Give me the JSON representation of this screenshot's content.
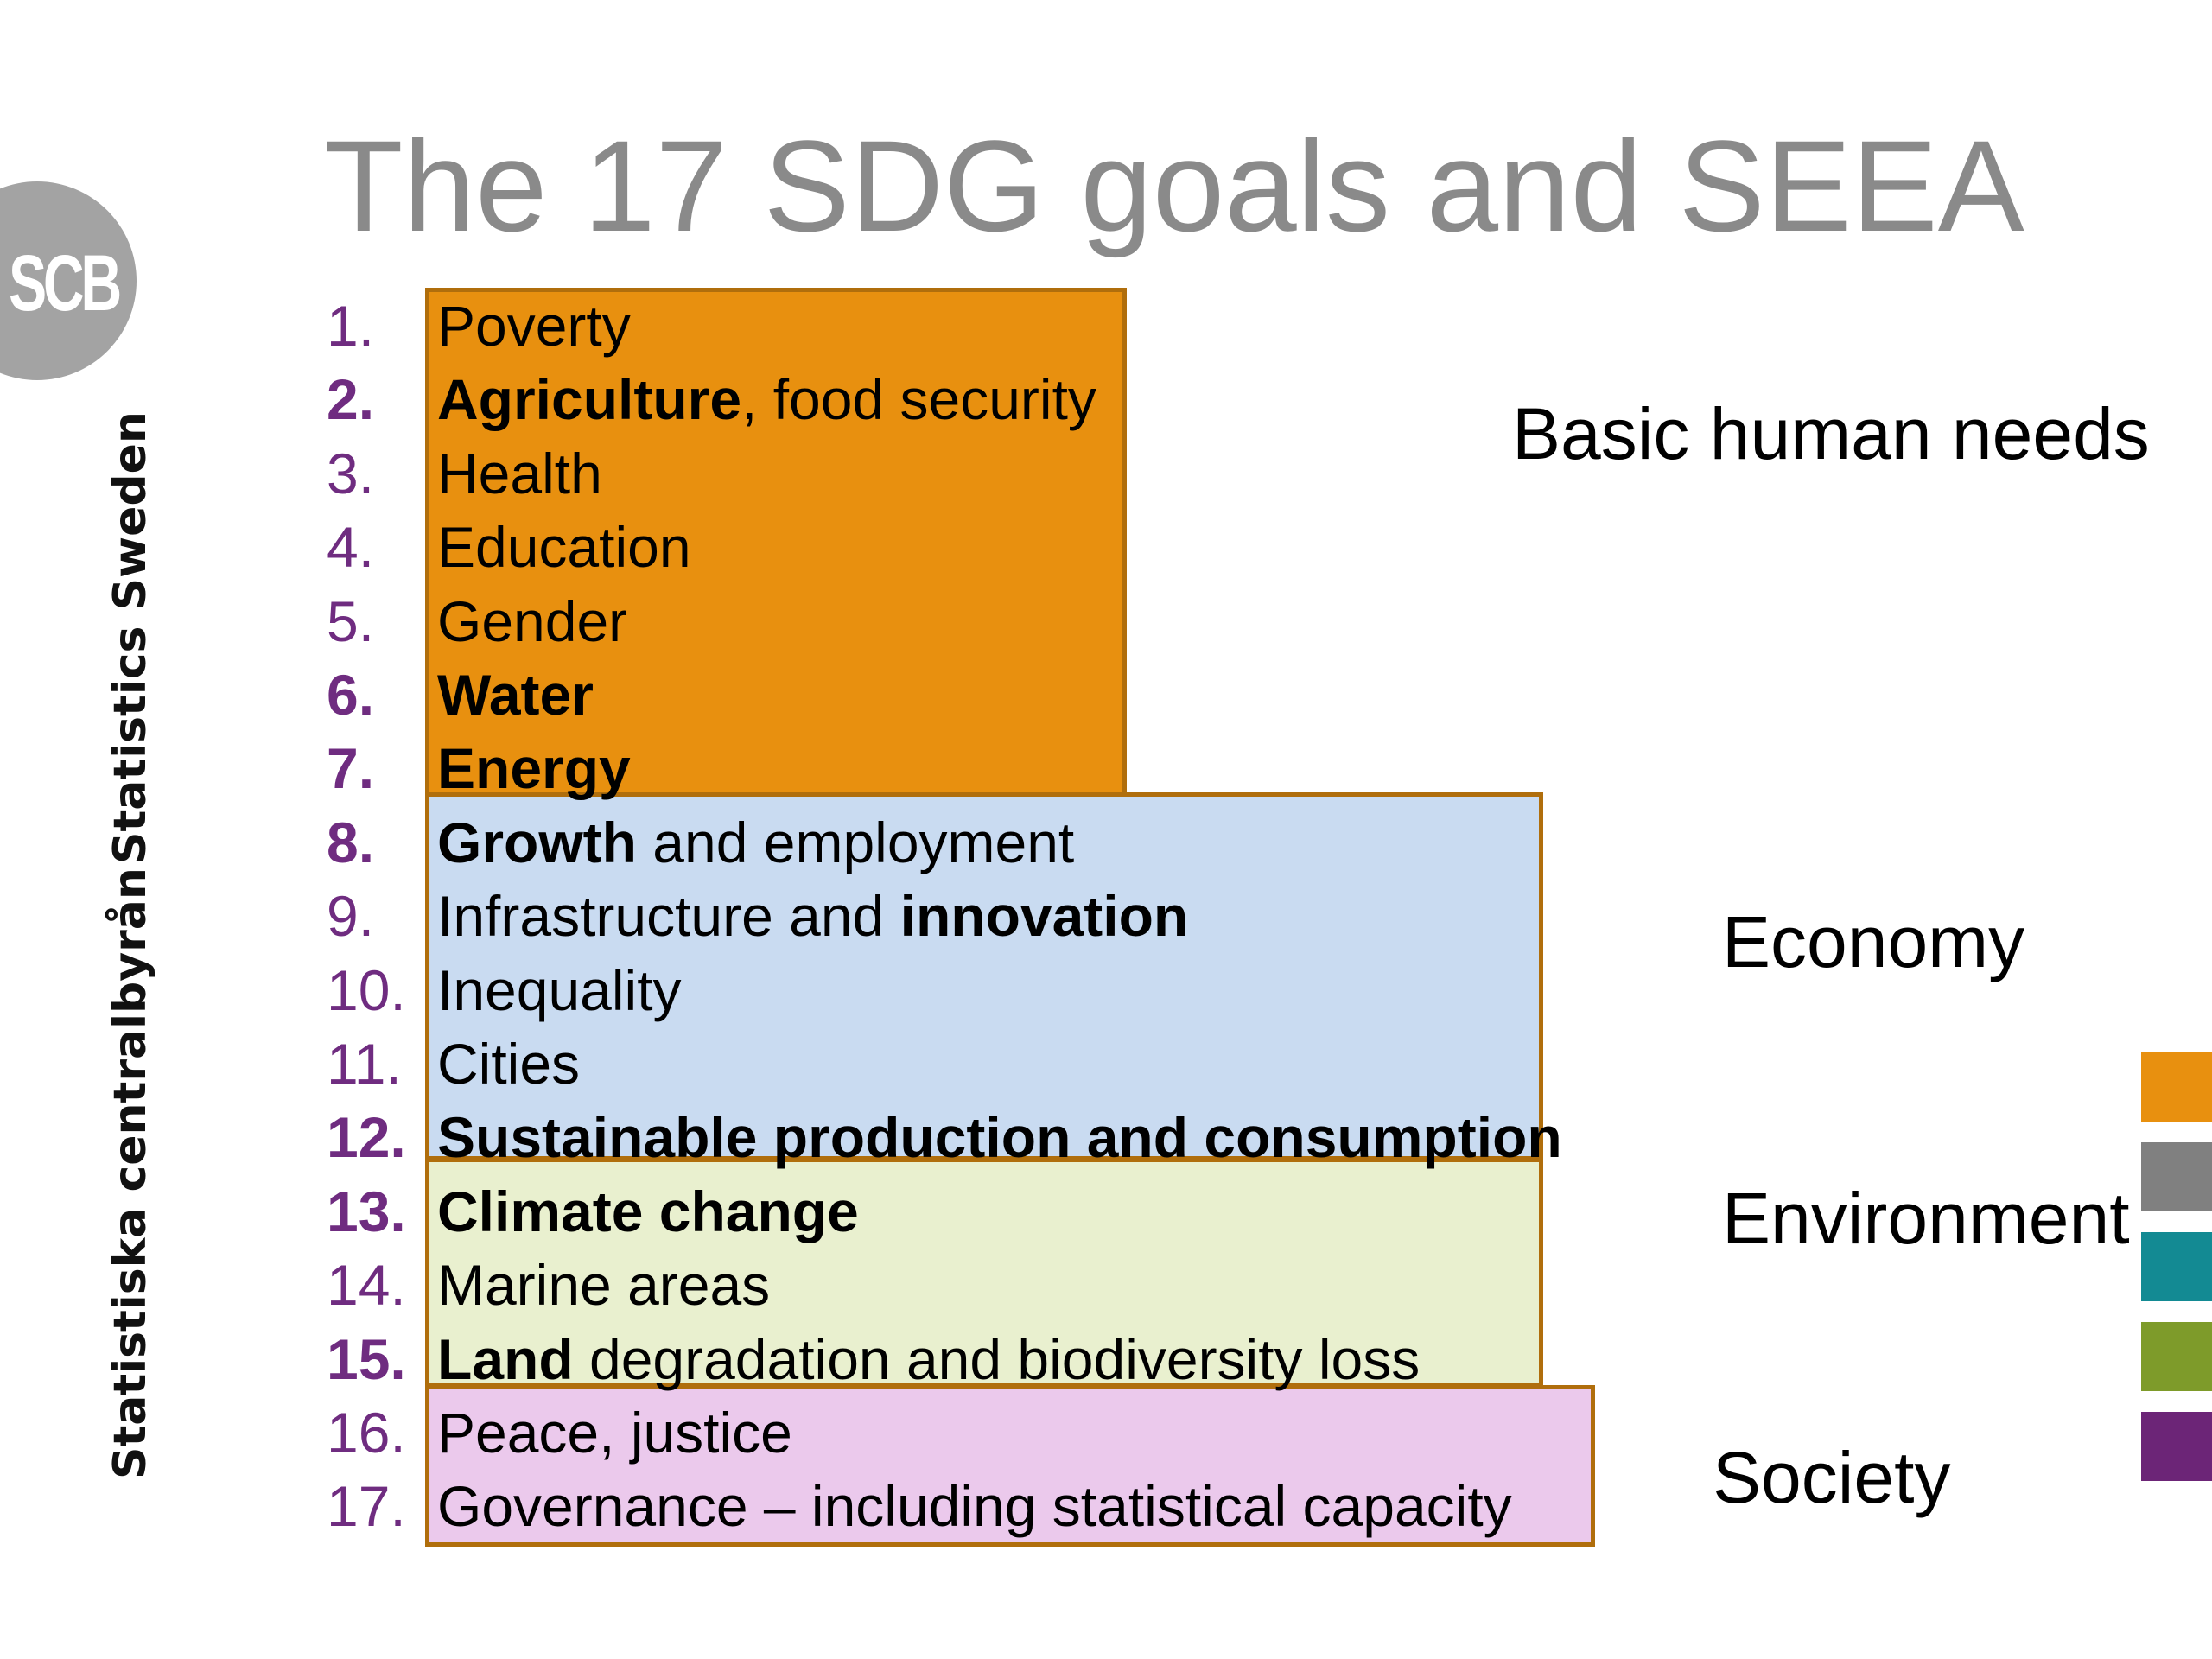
{
  "title": "The 17 SDG goals and SEEA",
  "logo": {
    "text": "SCB"
  },
  "sidebar": {
    "line1": "Statistiska centralbyrån",
    "line2": "Statistics Sweden"
  },
  "goals": [
    {
      "num": "1.",
      "parts": [
        {
          "t": "Poverty",
          "b": false
        }
      ],
      "num_bold": false
    },
    {
      "num": "2.",
      "parts": [
        {
          "t": "Agriculture",
          "b": true
        },
        {
          "t": ", food security",
          "b": false
        }
      ],
      "num_bold": true
    },
    {
      "num": "3.",
      "parts": [
        {
          "t": "Health",
          "b": false
        }
      ],
      "num_bold": false
    },
    {
      "num": "4.",
      "parts": [
        {
          "t": "Education",
          "b": false
        }
      ],
      "num_bold": false
    },
    {
      "num": "5.",
      "parts": [
        {
          "t": "Gender",
          "b": false
        }
      ],
      "num_bold": false
    },
    {
      "num": "6.",
      "parts": [
        {
          "t": "Water",
          "b": true
        }
      ],
      "num_bold": true
    },
    {
      "num": "7.",
      "parts": [
        {
          "t": "Energy",
          "b": true
        }
      ],
      "num_bold": true
    },
    {
      "num": "8.",
      "parts": [
        {
          "t": "Growth",
          "b": true
        },
        {
          "t": " and employment",
          "b": false
        }
      ],
      "num_bold": true
    },
    {
      "num": "9.",
      "parts": [
        {
          "t": "Infrastructure and ",
          "b": false
        },
        {
          "t": "innovation",
          "b": true
        }
      ],
      "num_bold": false
    },
    {
      "num": "10.",
      "parts": [
        {
          "t": "Inequality",
          "b": false
        }
      ],
      "num_bold": false
    },
    {
      "num": "11.",
      "parts": [
        {
          "t": "Cities",
          "b": false
        }
      ],
      "num_bold": false
    },
    {
      "num": "12.",
      "parts": [
        {
          "t": "Sustainable production and consumption",
          "b": true
        }
      ],
      "num_bold": true
    },
    {
      "num": "13.",
      "parts": [
        {
          "t": "Climate change",
          "b": true
        }
      ],
      "num_bold": true
    },
    {
      "num": "14.",
      "parts": [
        {
          "t": "Marine areas",
          "b": false
        }
      ],
      "num_bold": false
    },
    {
      "num": "15.",
      "parts": [
        {
          "t": "Land",
          "b": true
        },
        {
          "t": " degradation and biodiversity loss",
          "b": false
        }
      ],
      "num_bold": true
    },
    {
      "num": "16.",
      "parts": [
        {
          "t": "Peace, justice",
          "b": false
        }
      ],
      "num_bold": false
    },
    {
      "num": "17.",
      "parts": [
        {
          "t": "Governance – including statistical capacity",
          "b": false
        }
      ],
      "num_bold": false
    }
  ],
  "groups": {
    "basic": "Basic human needs",
    "economy": "Economy",
    "environment": "Environment",
    "society": "Society"
  },
  "colors": {
    "basic_needs": "#e8900f",
    "economy": "#c9dbf1",
    "environment": "#e9f0cf",
    "society": "#ebc9ec",
    "number_purple": "#6f2c80",
    "title_gray": "#8a8a8a",
    "swatches": [
      "#e8900f",
      "#808080",
      "#138a93",
      "#7e9b2a",
      "#6c2577"
    ]
  }
}
